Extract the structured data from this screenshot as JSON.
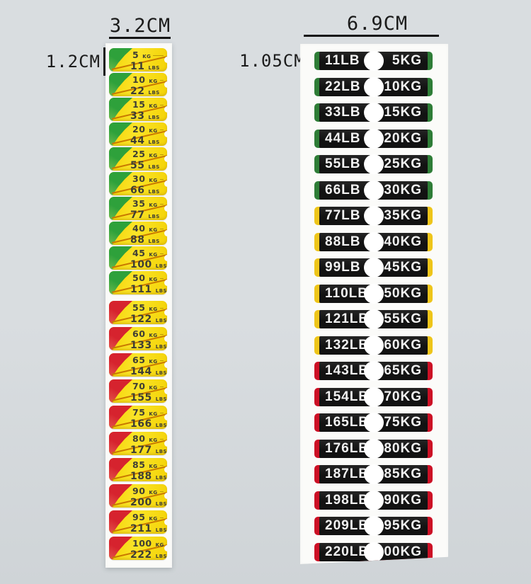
{
  "colors": {
    "bg1": "#d9dde0",
    "bg2": "#cfd4d7",
    "sheet": "#fbfbf9",
    "yellow": "#f4d307",
    "yellowLight": "#fae428",
    "green": "#2ea13b",
    "red": "#d6232e",
    "line": "#c97a00",
    "ink": "#3e3d35",
    "black": "#121212",
    "capGreen": "#2e7d37",
    "capYellow": "#eec51a",
    "capRed": "#cc1025",
    "white": "#ffffff",
    "textDark": "#1b1b1b"
  },
  "left_strip": {
    "width_label": "3.2CM",
    "height_label": "1.2CM",
    "unit_top": "KG",
    "unit_bottom": "LBS",
    "labels": [
      {
        "kg": "5",
        "lbs": "11",
        "zone": "green"
      },
      {
        "kg": "10",
        "lbs": "22",
        "zone": "green"
      },
      {
        "kg": "15",
        "lbs": "33",
        "zone": "green"
      },
      {
        "kg": "20",
        "lbs": "44",
        "zone": "green"
      },
      {
        "kg": "25",
        "lbs": "55",
        "zone": "green"
      },
      {
        "kg": "30",
        "lbs": "66",
        "zone": "green"
      },
      {
        "kg": "35",
        "lbs": "77",
        "zone": "green"
      },
      {
        "kg": "40",
        "lbs": "88",
        "zone": "green"
      },
      {
        "kg": "45",
        "lbs": "100",
        "zone": "green"
      },
      {
        "kg": "50",
        "lbs": "111",
        "zone": "green"
      },
      {
        "kg": "55",
        "lbs": "122",
        "zone": "red"
      },
      {
        "kg": "60",
        "lbs": "133",
        "zone": "red"
      },
      {
        "kg": "65",
        "lbs": "144",
        "zone": "red"
      },
      {
        "kg": "70",
        "lbs": "155",
        "zone": "red"
      },
      {
        "kg": "75",
        "lbs": "166",
        "zone": "red"
      },
      {
        "kg": "80",
        "lbs": "177",
        "zone": "red"
      },
      {
        "kg": "85",
        "lbs": "188",
        "zone": "red"
      },
      {
        "kg": "90",
        "lbs": "200",
        "zone": "red"
      },
      {
        "kg": "95",
        "lbs": "211",
        "zone": "red"
      },
      {
        "kg": "100",
        "lbs": "222",
        "zone": "red"
      }
    ]
  },
  "right_strip": {
    "width_label": "6.9CM",
    "height_label": "1.05CM",
    "labels": [
      {
        "lb": "11LB",
        "kg": "5KG",
        "zone": "green"
      },
      {
        "lb": "22LB",
        "kg": "10KG",
        "zone": "green"
      },
      {
        "lb": "33LB",
        "kg": "15KG",
        "zone": "green"
      },
      {
        "lb": "44LB",
        "kg": "20KG",
        "zone": "green"
      },
      {
        "lb": "55LB",
        "kg": "25KG",
        "zone": "green"
      },
      {
        "lb": "66LB",
        "kg": "30KG",
        "zone": "green"
      },
      {
        "lb": "77LB",
        "kg": "35KG",
        "zone": "yellow"
      },
      {
        "lb": "88LB",
        "kg": "40KG",
        "zone": "yellow"
      },
      {
        "lb": "99LB",
        "kg": "45KG",
        "zone": "yellow"
      },
      {
        "lb": "110LB",
        "kg": "50KG",
        "zone": "yellow"
      },
      {
        "lb": "121LB",
        "kg": "55KG",
        "zone": "yellow"
      },
      {
        "lb": "132LB",
        "kg": "60KG",
        "zone": "yellow"
      },
      {
        "lb": "143LB",
        "kg": "65KG",
        "zone": "red"
      },
      {
        "lb": "154LB",
        "kg": "70KG",
        "zone": "red"
      },
      {
        "lb": "165LB",
        "kg": "75KG",
        "zone": "red"
      },
      {
        "lb": "176LB",
        "kg": "80KG",
        "zone": "red"
      },
      {
        "lb": "187LB",
        "kg": "85KG",
        "zone": "red"
      },
      {
        "lb": "198LB",
        "kg": "90KG",
        "zone": "red"
      },
      {
        "lb": "209LB",
        "kg": "95KG",
        "zone": "red"
      },
      {
        "lb": "220LB",
        "kg": "100KG",
        "zone": "red"
      }
    ]
  }
}
